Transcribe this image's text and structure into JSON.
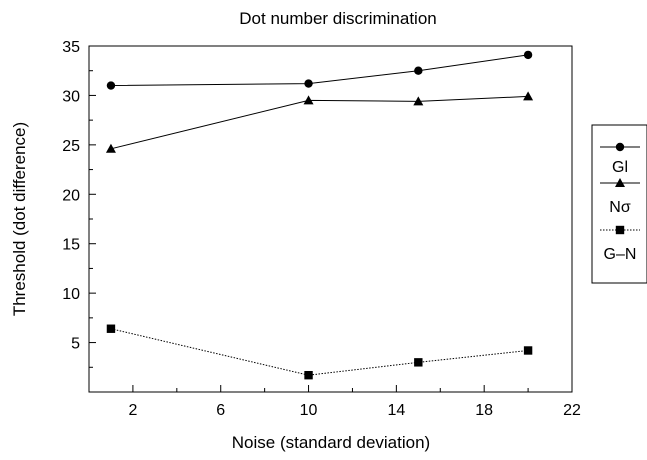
{
  "chart_data": {
    "type": "line",
    "title": "Dot number discrimination",
    "xlabel": "Noise (standard deviation)",
    "ylabel": "Threshold  (dot difference)",
    "xlim": [
      0,
      22
    ],
    "ylim": [
      0,
      35
    ],
    "x_ticks": [
      2,
      6,
      10,
      14,
      18,
      22
    ],
    "y_ticks": [
      5,
      10,
      15,
      20,
      25,
      30,
      35
    ],
    "grid": false,
    "legend_position": "right",
    "series": [
      {
        "name": "Gl",
        "marker": "circle",
        "line_style": "solid",
        "x": [
          1,
          10,
          15,
          20
        ],
        "y": [
          31.0,
          31.2,
          32.5,
          34.1
        ]
      },
      {
        "name": "Nσ",
        "marker": "triangle",
        "line_style": "solid",
        "x": [
          1,
          10,
          15,
          20
        ],
        "y": [
          24.6,
          29.5,
          29.4,
          29.9
        ]
      },
      {
        "name": "G–N",
        "marker": "square",
        "line_style": "dotted",
        "x": [
          1,
          10,
          15,
          20
        ],
        "y": [
          6.4,
          1.7,
          3.0,
          4.2
        ]
      }
    ]
  }
}
